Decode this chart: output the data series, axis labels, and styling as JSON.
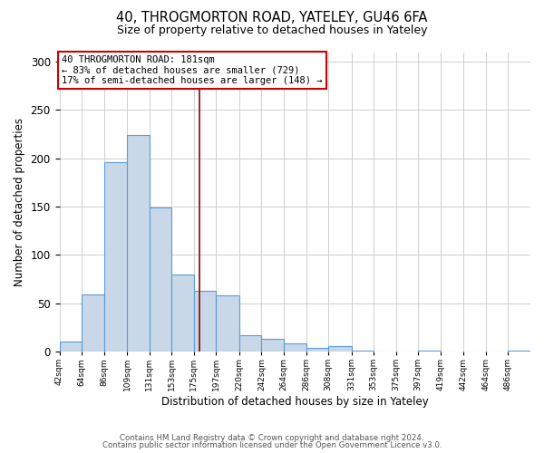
{
  "title": "40, THROGMORTON ROAD, YATELEY, GU46 6FA",
  "subtitle": "Size of property relative to detached houses in Yateley",
  "xlabel": "Distribution of detached houses by size in Yateley",
  "ylabel": "Number of detached properties",
  "footer_lines": [
    "Contains HM Land Registry data © Crown copyright and database right 2024.",
    "Contains public sector information licensed under the Open Government Licence v3.0."
  ],
  "bin_labels": [
    "42sqm",
    "64sqm",
    "86sqm",
    "109sqm",
    "131sqm",
    "153sqm",
    "175sqm",
    "197sqm",
    "220sqm",
    "242sqm",
    "264sqm",
    "286sqm",
    "308sqm",
    "331sqm",
    "353sqm",
    "375sqm",
    "397sqm",
    "419sqm",
    "442sqm",
    "464sqm",
    "486sqm"
  ],
  "bar_heights": [
    10,
    59,
    196,
    224,
    149,
    80,
    63,
    58,
    17,
    13,
    9,
    4,
    6,
    1,
    0,
    0,
    1,
    0,
    0,
    0,
    1
  ],
  "bar_color": "#c8d8e8",
  "bar_edge_color": "#5b9bd5",
  "property_line_label": "40 THROGMORTON ROAD: 181sqm",
  "annotation_line1": "← 83% of detached houses are smaller (729)",
  "annotation_line2": "17% of semi-detached houses are larger (148) →",
  "vline_color": "#8b0000",
  "annotation_box_edge_color": "#cc0000",
  "ylim": [
    0,
    310
  ],
  "yticks": [
    0,
    50,
    100,
    150,
    200,
    250,
    300
  ],
  "bin_edges_sqm": [
    42,
    64,
    86,
    109,
    131,
    153,
    175,
    197,
    220,
    242,
    264,
    286,
    308,
    331,
    353,
    375,
    397,
    419,
    442,
    464,
    486,
    508
  ],
  "property_sqm": 181
}
